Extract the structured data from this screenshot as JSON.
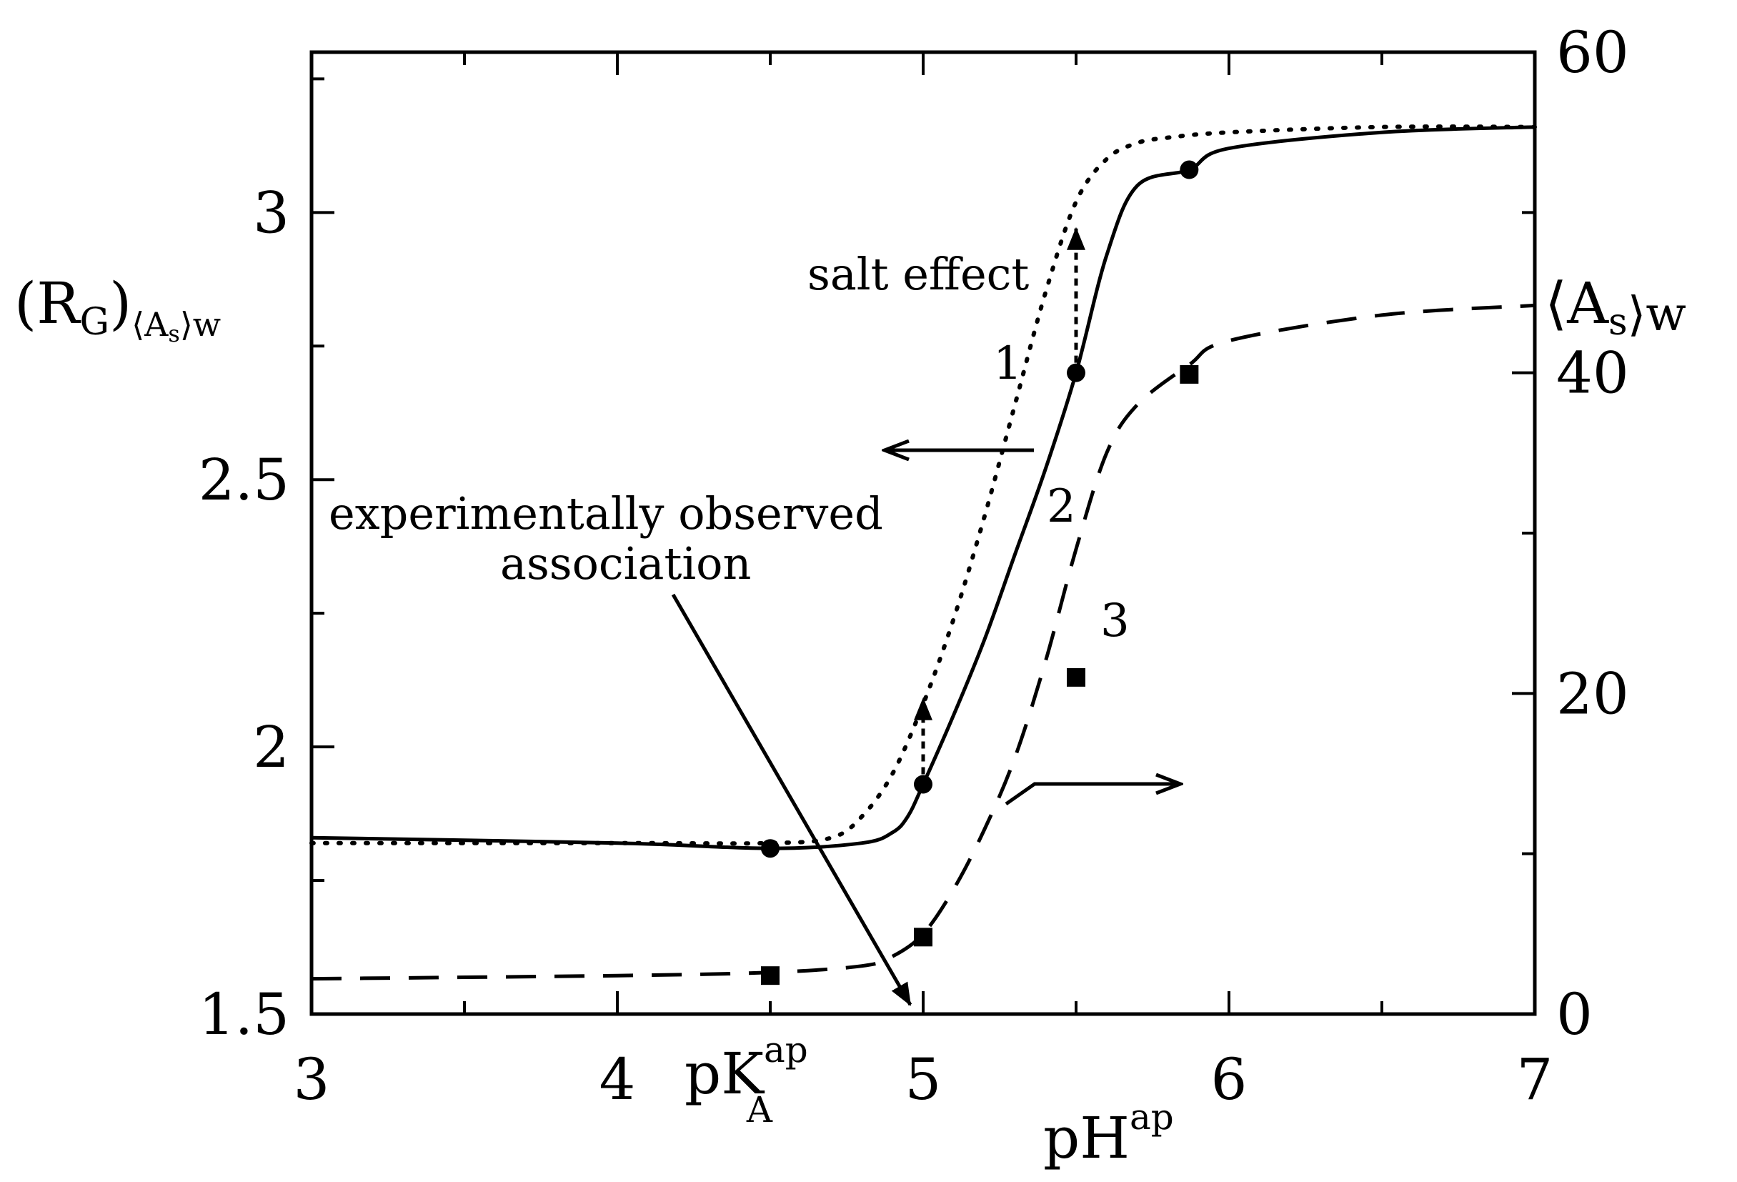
{
  "chart_data": {
    "type": "line",
    "title": "",
    "x_axis": {
      "label": "pH",
      "label_sup": "ap",
      "range": [
        3,
        7
      ],
      "ticks": [
        3,
        4,
        5,
        6,
        7
      ],
      "tick_labels": [
        "3",
        "4",
        "5",
        "6",
        "7"
      ],
      "minor_ticks": [
        3.5,
        4.5,
        5.5,
        6.5
      ],
      "marker": {
        "label": "pK",
        "label_sup": "ap",
        "label_sub": "A",
        "x": 4.6
      }
    },
    "y_left": {
      "label": "(R",
      "label_sub": "G",
      "label_close": ")",
      "label_sub2": "⟨A",
      "label_sub2_sub": "s",
      "label_sub2_close": "⟩w",
      "range": [
        1.5,
        3.3
      ],
      "ticks": [
        1.5,
        2,
        2.5,
        3
      ],
      "tick_labels": [
        "1.5",
        "2",
        "2.5",
        "3"
      ],
      "minor_ticks": [
        1.75,
        2.25,
        2.75,
        3.25
      ]
    },
    "y_right": {
      "label": "⟨A",
      "label_sub": "s",
      "label_close": "⟩w",
      "range": [
        0,
        60
      ],
      "ticks": [
        0,
        20,
        40,
        60
      ],
      "tick_labels": [
        "0",
        "20",
        "40",
        "60"
      ],
      "minor_ticks": [
        10,
        30,
        50
      ]
    },
    "grid": false,
    "legend": "none",
    "series": [
      {
        "name": "1",
        "style": "dotted",
        "axis": "left",
        "x": [
          3.0,
          4.0,
          4.5,
          4.7,
          4.8,
          4.9,
          5.0,
          5.1,
          5.2,
          5.3,
          5.4,
          5.5,
          5.6,
          5.7,
          5.8,
          6.0,
          6.5,
          7.0
        ],
        "y": [
          1.82,
          1.82,
          1.82,
          1.83,
          1.87,
          1.95,
          2.08,
          2.24,
          2.43,
          2.64,
          2.85,
          3.02,
          3.1,
          3.13,
          3.14,
          3.15,
          3.16,
          3.16
        ]
      },
      {
        "name": "2",
        "style": "solid",
        "axis": "left",
        "x": [
          3.0,
          4.0,
          4.5,
          4.8,
          4.9,
          4.95,
          5.0,
          5.1,
          5.2,
          5.3,
          5.4,
          5.5,
          5.6,
          5.7,
          5.87,
          6.0,
          6.5,
          7.0
        ],
        "y": [
          1.83,
          1.82,
          1.81,
          1.82,
          1.84,
          1.87,
          1.93,
          2.06,
          2.2,
          2.36,
          2.52,
          2.7,
          2.92,
          3.05,
          3.08,
          3.12,
          3.15,
          3.16
        ],
        "markers": {
          "shape": "circle",
          "x": [
            4.5,
            5.0,
            5.5,
            5.87
          ],
          "y": [
            1.81,
            1.93,
            2.7,
            3.08
          ]
        }
      },
      {
        "name": "3",
        "style": "dashed",
        "axis": "right",
        "x": [
          3.0,
          4.0,
          4.5,
          4.8,
          4.9,
          5.0,
          5.1,
          5.2,
          5.3,
          5.4,
          5.5,
          5.6,
          5.7,
          5.87,
          6.0,
          6.5,
          7.0
        ],
        "y": [
          2.2,
          2.4,
          2.6,
          3.0,
          3.6,
          5.0,
          7.8,
          11.5,
          16.0,
          22.0,
          29.0,
          35.0,
          38.0,
          40.5,
          42.0,
          43.6,
          44.2
        ],
        "markers": {
          "shape": "square",
          "x": [
            4.5,
            5.0,
            5.5,
            5.87
          ],
          "y": [
            2.4,
            4.8,
            21.0,
            39.9
          ]
        }
      }
    ],
    "annotations": [
      {
        "text": "salt effect",
        "x": 5.0,
        "y": 2.89
      },
      {
        "text": "experimentally observed",
        "x": 4.1,
        "y": 2.45
      },
      {
        "text": "association",
        "x": 4.1,
        "y": 2.36
      }
    ],
    "curve_labels": [
      "1",
      "2",
      "3"
    ]
  }
}
